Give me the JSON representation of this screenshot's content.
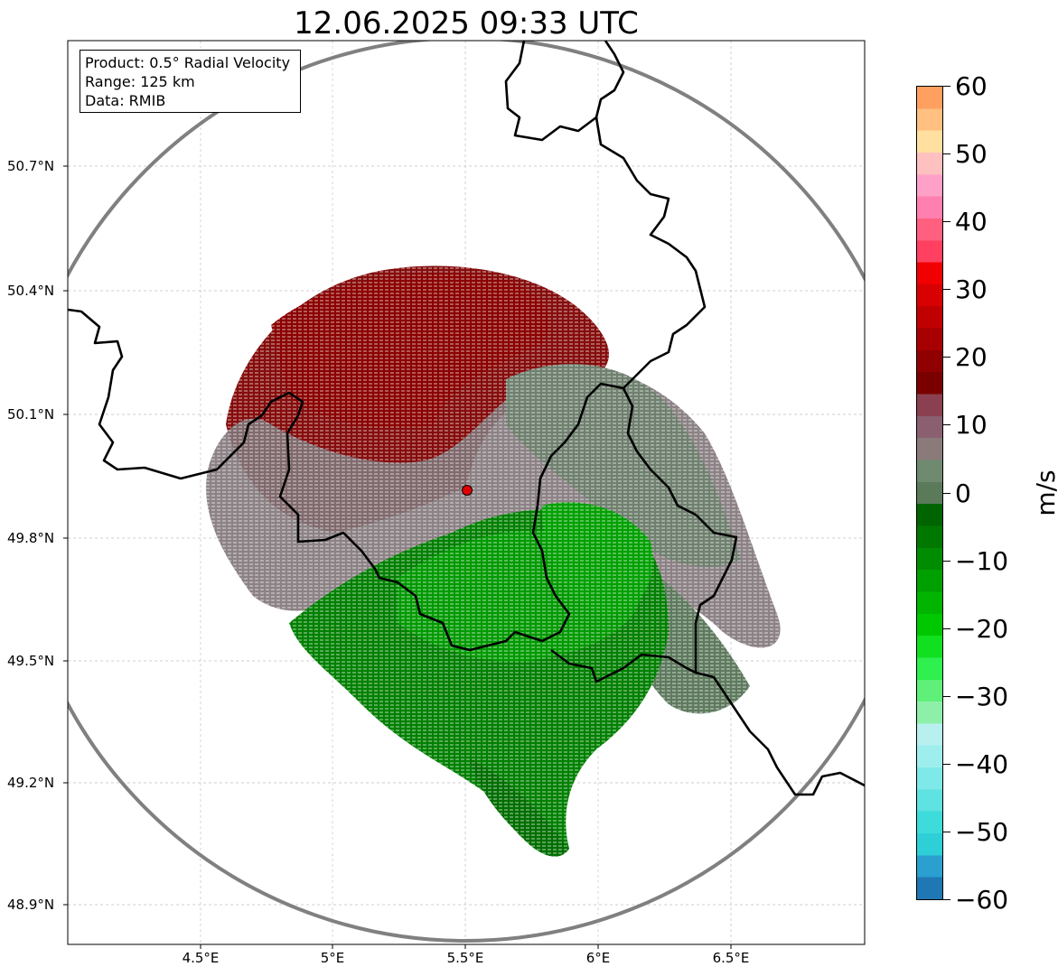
{
  "title": "12.06.2025 09:33 UTC",
  "info_box": {
    "product": "Product: 0.5° Radial Velocity",
    "range": "Range: 125 km",
    "data": "Data: RMIB"
  },
  "latitude_labels": [
    "50.7°N",
    "50.4°N",
    "50.1°N",
    "49.8°N",
    "49.5°N",
    "49.2°N",
    "48.9°N"
  ],
  "longitude_labels": [
    "4.5°E",
    "5°E",
    "5.5°E",
    "6°E",
    "6.5°E"
  ],
  "colorbar": {
    "unit": "m/s",
    "ticks": [
      "60",
      "50",
      "40",
      "30",
      "20",
      "10",
      "0",
      "−10",
      "−20",
      "−30",
      "−40",
      "−50",
      "−60"
    ],
    "range": [
      -60,
      60
    ],
    "colors_bottom_to_top": [
      "#1f77b4",
      "#2a9fd0",
      "#2fcfd8",
      "#3edbdb",
      "#5fe2e2",
      "#7fe8e8",
      "#9eeeee",
      "#b8f0f0",
      "#8ef0a8",
      "#5ff07a",
      "#30f050",
      "#10e020",
      "#00c800",
      "#00b400",
      "#00a000",
      "#008c00",
      "#007800",
      "#006400",
      "#5a7a5a",
      "#6f8a6f",
      "#8a7a7a",
      "#8a6070",
      "#8a4050",
      "#7a0000",
      "#900000",
      "#a80000",
      "#c00000",
      "#d80000",
      "#f00000",
      "#ff4060",
      "#ff6080",
      "#ff80b0",
      "#ffa0c8",
      "#ffc0c0",
      "#ffe0a0",
      "#ffc080",
      "#ffa060"
    ]
  },
  "colors": {
    "border_line": "#000000",
    "range_circle": "#808080",
    "radar_site": "#e00000"
  }
}
